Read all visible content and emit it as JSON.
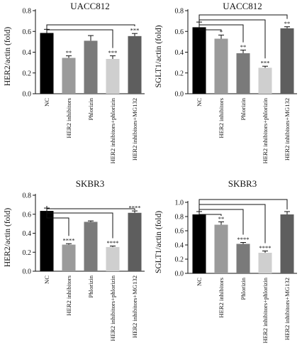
{
  "chart_data": [
    {
      "type": "bar",
      "title": "UACC812",
      "ylabel": "HER2/actin (fold)",
      "ylim": [
        0,
        0.8
      ],
      "yticks": [
        "0.0",
        "0.2",
        "0.4",
        "0.6",
        "0.8"
      ],
      "categories": [
        "NC",
        "HER2 inhibitors",
        "Phlorizin",
        "HER2 inhibitors+phlorizin",
        "HER2 inhibitors+MG132"
      ],
      "values": [
        0.585,
        0.345,
        0.51,
        0.335,
        0.555
      ],
      "errors": [
        0.035,
        0.02,
        0.05,
        0.03,
        0.025
      ],
      "significance": [
        "",
        "**",
        "",
        "***",
        "***"
      ],
      "colors": [
        "#000000",
        "#9a9a9a",
        "#7a7a7a",
        "#cfcfcf",
        "#5e5e5e"
      ]
    },
    {
      "type": "bar",
      "title": "UACC812",
      "ylabel": "SGLT1/actin (fold)",
      "ylim": [
        0,
        0.8
      ],
      "yticks": [
        "0.0",
        "0.2",
        "0.4",
        "0.6",
        "0.8"
      ],
      "categories": [
        "NC",
        "HER2 inhibitors",
        "Phlorizin",
        "HER2 inhibitors+phlorizin",
        "HER2 inhibitors+MG132"
      ],
      "values": [
        0.64,
        0.53,
        0.39,
        0.25,
        0.63
      ],
      "errors": [
        0.05,
        0.035,
        0.03,
        0.015,
        0.015
      ],
      "significance": [
        "",
        "*",
        "**",
        "***",
        "**"
      ],
      "colors": [
        "#000000",
        "#9a9a9a",
        "#7a7a7a",
        "#cfcfcf",
        "#5e5e5e"
      ]
    },
    {
      "type": "bar",
      "title": "SKBR3",
      "ylabel": "HER2/actin (fold)",
      "ylim": [
        0,
        0.8
      ],
      "yticks": [
        "0.0",
        "0.2",
        "0.4",
        "0.6",
        "0.8"
      ],
      "categories": [
        "NC",
        "HER2 inhibitors",
        "Phlorizin",
        "HER2 inhibitors+phlorizin",
        "HER2 inhibitors+MG132"
      ],
      "values": [
        0.635,
        0.28,
        0.52,
        0.255,
        0.615
      ],
      "errors": [
        0.03,
        0.01,
        0.01,
        0.01,
        0.02
      ],
      "significance": [
        "",
        "****",
        "",
        "****",
        "****"
      ],
      "colors": [
        "#000000",
        "#9a9a9a",
        "#7a7a7a",
        "#cfcfcf",
        "#5e5e5e"
      ]
    },
    {
      "type": "bar",
      "title": "SKBR3",
      "ylabel": "SGLT1/actin (fold)",
      "ylim": [
        0,
        1.0
      ],
      "yticks": [
        "0.0",
        "0.2",
        "0.4",
        "0.6",
        "0.8",
        "1.0"
      ],
      "categories": [
        "NC",
        "HER2 inhibitors",
        "Phlorizin",
        "HER2 inhibitors+phlorizin",
        "HER2 inhibitors+MG132"
      ],
      "values": [
        0.83,
        0.685,
        0.415,
        0.29,
        0.83
      ],
      "errors": [
        0.04,
        0.04,
        0.02,
        0.025,
        0.04
      ],
      "significance": [
        "",
        "**",
        "****",
        "****",
        ""
      ],
      "colors": [
        "#000000",
        "#9a9a9a",
        "#7a7a7a",
        "#cfcfcf",
        "#5e5e5e"
      ]
    }
  ]
}
